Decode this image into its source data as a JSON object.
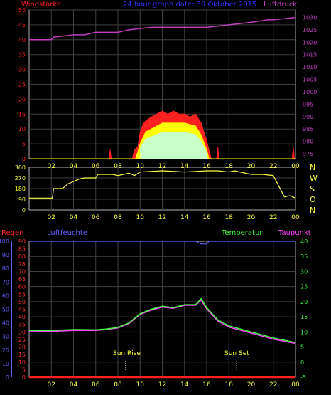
{
  "header": {
    "left": "Windstärke",
    "center": "24 hour graph date: 30 Oktober 2015",
    "right": "Luftdruck"
  },
  "panel3_labels": {
    "regen": "Regen",
    "luftfeuchte": "Luftfeuchte",
    "temperatur": "Temperatur",
    "taupunkt": "Taupunkt",
    "sunrise": "Sun Rise",
    "sunset": "Sun Set"
  },
  "colors": {
    "wind_left": "#ff2020",
    "pressure": "#c040c0",
    "title": "#3030ff",
    "wind_avg": "#ffff00",
    "direction": "#ffff40",
    "rain": "#ff2020",
    "humidity": "#6060ff",
    "temperature": "#40ff40",
    "dewpoint": "#ff40ff",
    "grid": "#404040",
    "frame": "#b0b0b0"
  },
  "chart_data": [
    {
      "type": "area",
      "title": "24 hour graph date: 30 Oktober 2015",
      "x_ticks": [
        "02",
        "04",
        "06",
        "08",
        "10",
        "12",
        "14",
        "16",
        "18",
        "20",
        "22",
        "00"
      ],
      "y_left": {
        "label": "Windstärke",
        "ticks": [
          0,
          5,
          10,
          15,
          20,
          25,
          30,
          35,
          40,
          45,
          50
        ],
        "lim": [
          0,
          50
        ]
      },
      "y_right": {
        "label": "Luftdruck",
        "ticks": [
          975,
          980,
          985,
          990,
          995,
          1000,
          1005,
          1010,
          1015,
          1020,
          1025,
          1030
        ],
        "lim": [
          973,
          1033
        ]
      },
      "series": [
        {
          "name": "Luftdruck",
          "axis": "right",
          "points": [
            [
              0,
              1021
            ],
            [
              2,
              1021
            ],
            [
              2.2,
              1022
            ],
            [
              4,
              1023
            ],
            [
              5,
              1023
            ],
            [
              6,
              1024
            ],
            [
              8,
              1024
            ],
            [
              9,
              1025
            ],
            [
              11,
              1026
            ],
            [
              12,
              1026
            ],
            [
              13,
              1026
            ],
            [
              16,
              1026
            ],
            [
              18,
              1027
            ],
            [
              20,
              1028
            ],
            [
              21.5,
              1029
            ],
            [
              22,
              1029
            ],
            [
              24,
              1030
            ]
          ]
        },
        {
          "name": "gusts",
          "axis": "left",
          "points": [
            [
              0,
              0
            ],
            [
              7.2,
              0
            ],
            [
              7.3,
              3
            ],
            [
              7.4,
              0
            ],
            [
              9.3,
              0
            ],
            [
              9.5,
              3
            ],
            [
              9.8,
              4
            ],
            [
              10,
              9
            ],
            [
              10.3,
              12
            ],
            [
              10.6,
              13
            ],
            [
              11,
              14
            ],
            [
              11.5,
              15
            ],
            [
              12,
              16
            ],
            [
              12.5,
              15
            ],
            [
              13,
              16
            ],
            [
              13.5,
              15
            ],
            [
              14,
              15
            ],
            [
              14.5,
              14
            ],
            [
              15,
              15
            ],
            [
              15.5,
              12
            ],
            [
              16,
              6
            ],
            [
              16.4,
              0
            ],
            [
              16.9,
              0
            ],
            [
              17,
              4
            ],
            [
              17.1,
              0
            ],
            [
              23.7,
              0
            ],
            [
              23.8,
              4
            ],
            [
              23.9,
              0
            ],
            [
              24,
              0
            ]
          ]
        },
        {
          "name": "average",
          "axis": "left",
          "points": [
            [
              0,
              0
            ],
            [
              9.6,
              0
            ],
            [
              10,
              5
            ],
            [
              10.5,
              9
            ],
            [
              11,
              10
            ],
            [
              11.5,
              11
            ],
            [
              12,
              12
            ],
            [
              13,
              12
            ],
            [
              14,
              12
            ],
            [
              15,
              11
            ],
            [
              15.5,
              8
            ],
            [
              16,
              3
            ],
            [
              16.2,
              0
            ],
            [
              24,
              0
            ]
          ]
        }
      ]
    },
    {
      "type": "line",
      "x_ticks": [
        "02",
        "04",
        "06",
        "08",
        "10",
        "12",
        "14",
        "16",
        "18",
        "20",
        "22",
        "00"
      ],
      "y_left": {
        "ticks": [
          0,
          90,
          180,
          270,
          360
        ],
        "lim": [
          0,
          360
        ]
      },
      "y_right": {
        "ticks": [
          "N",
          "W",
          "S",
          "O",
          "N"
        ]
      },
      "series": [
        {
          "name": "Windrichtung",
          "points": [
            [
              0,
              100
            ],
            [
              2.1,
              100
            ],
            [
              2.2,
              180
            ],
            [
              3,
              180
            ],
            [
              3.5,
              220
            ],
            [
              4,
              240
            ],
            [
              4.5,
              260
            ],
            [
              5,
              270
            ],
            [
              6,
              270
            ],
            [
              6.2,
              300
            ],
            [
              7,
              300
            ],
            [
              7.5,
              300
            ],
            [
              8,
              290
            ],
            [
              8.5,
              300
            ],
            [
              9,
              310
            ],
            [
              9.5,
              290
            ],
            [
              10,
              320
            ],
            [
              12,
              330
            ],
            [
              14,
              320
            ],
            [
              16,
              330
            ],
            [
              17,
              330
            ],
            [
              18,
              320
            ],
            [
              18.5,
              330
            ],
            [
              19,
              320
            ],
            [
              20,
              300
            ],
            [
              21,
              300
            ],
            [
              22,
              290
            ],
            [
              22.5,
              200
            ],
            [
              23,
              110
            ],
            [
              23.5,
              120
            ],
            [
              24,
              100
            ]
          ]
        }
      ]
    },
    {
      "type": "line",
      "x_ticks": [
        "02",
        "04",
        "06",
        "08",
        "10",
        "12",
        "14",
        "16",
        "18",
        "20",
        "22",
        "00"
      ],
      "y_outer_left": {
        "label": "Regen",
        "ticks": [
          0,
          10,
          20,
          30,
          40,
          50,
          60,
          70,
          80,
          90,
          100
        ],
        "lim": [
          0,
          100
        ]
      },
      "y_left": {
        "label": "Luftfeuchte",
        "ticks": [
          0,
          5,
          10,
          15,
          20,
          25,
          30,
          35,
          40,
          45,
          50,
          55,
          60,
          65,
          70,
          75,
          80,
          85,
          90
        ],
        "lim": [
          0,
          90
        ]
      },
      "y_right": {
        "label": "Temperatur",
        "ticks": [
          -5,
          0,
          5,
          10,
          15,
          20,
          25,
          30,
          35,
          40
        ],
        "lim": [
          -5,
          40
        ]
      },
      "series": [
        {
          "name": "Luftfeuchte",
          "axis": "outer_left",
          "points": [
            [
              0,
              100
            ],
            [
              15,
              100
            ],
            [
              15.5,
              98
            ],
            [
              16,
              98
            ],
            [
              16.2,
              100
            ],
            [
              24,
              100
            ]
          ]
        },
        {
          "name": "Temperatur",
          "axis": "right",
          "points": [
            [
              0,
              10.5
            ],
            [
              2,
              10.5
            ],
            [
              4,
              10.8
            ],
            [
              6,
              10.7
            ],
            [
              7,
              11
            ],
            [
              8,
              11.5
            ],
            [
              9,
              13
            ],
            [
              10,
              16
            ],
            [
              11,
              17.5
            ],
            [
              12,
              18.5
            ],
            [
              13,
              18
            ],
            [
              14,
              19
            ],
            [
              15,
              19
            ],
            [
              15.5,
              21
            ],
            [
              16,
              18
            ],
            [
              17,
              14
            ],
            [
              18,
              12
            ],
            [
              20,
              10
            ],
            [
              22,
              8
            ],
            [
              24,
              6.5
            ]
          ]
        },
        {
          "name": "Taupunkt",
          "axis": "right",
          "points": [
            [
              0,
              10.3
            ],
            [
              2,
              10.2
            ],
            [
              4,
              10.5
            ],
            [
              6,
              10.5
            ],
            [
              7,
              10.8
            ],
            [
              8,
              11.3
            ],
            [
              9,
              12.8
            ],
            [
              10,
              15.8
            ],
            [
              11,
              17.2
            ],
            [
              12,
              18.2
            ],
            [
              13,
              17.8
            ],
            [
              14,
              18.8
            ],
            [
              15,
              18.8
            ],
            [
              15.5,
              20.6
            ],
            [
              16,
              17.6
            ],
            [
              17,
              13.6
            ],
            [
              18,
              11.6
            ],
            [
              20,
              9.6
            ],
            [
              22,
              7.6
            ],
            [
              24,
              6.2
            ]
          ]
        },
        {
          "name": "Regen",
          "axis": "outer_left",
          "points": [
            [
              0,
              0
            ],
            [
              24,
              0
            ]
          ]
        }
      ],
      "markers": {
        "sunrise_hour": 8.7,
        "sunset_hour": 18.7
      }
    }
  ]
}
